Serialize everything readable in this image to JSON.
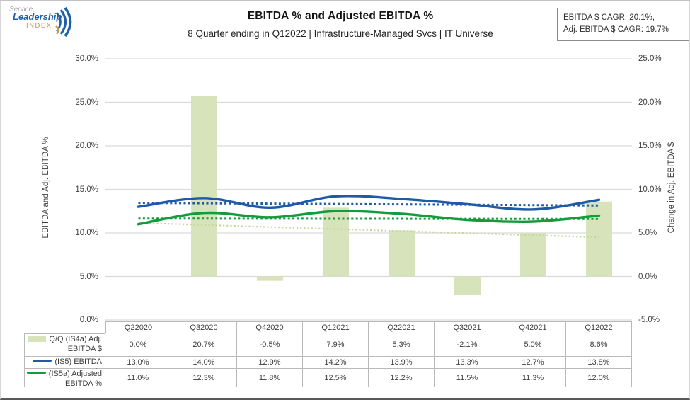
{
  "logo": {
    "line1": "Service,",
    "line2": "Leadership",
    "line3": "INDEX"
  },
  "header": {
    "title": "EBITDA % and Adjusted EBITDA %",
    "subtitle": "8 Quarter ending in Q12022 | Infrastructure-Managed Svcs | IT Universe",
    "cagr_box": {
      "line1": "EBITDA $ CAGR: 20.1%,",
      "line2": "Adj. EBITDA $ CAGR: 19.7%"
    }
  },
  "chart_data": {
    "type": "combo",
    "categories": [
      "Q22020",
      "Q32020",
      "Q42020",
      "Q12021",
      "Q22021",
      "Q32021",
      "Q42021",
      "Q12022"
    ],
    "series": [
      {
        "name": "Q/Q (IS4a) Adj. EBITDA $",
        "type": "bar",
        "axis": "right",
        "color": "#d7e3bb",
        "values": [
          0.0,
          20.7,
          -0.5,
          7.9,
          5.3,
          -2.1,
          5.0,
          8.6
        ]
      },
      {
        "name": "(IS5) EBITDA %",
        "type": "line",
        "axis": "left",
        "color": "#1e5aa5",
        "values": [
          13.0,
          14.0,
          12.9,
          14.2,
          13.9,
          13.3,
          12.7,
          13.8
        ]
      },
      {
        "name": "(IS5a) Adjusted EBITDA %",
        "type": "line",
        "axis": "left",
        "color": "#149b3c",
        "values": [
          11.0,
          12.3,
          11.8,
          12.5,
          12.2,
          11.5,
          11.3,
          12.0
        ]
      }
    ],
    "trendlines": [
      {
        "for": "(IS5) EBITDA %",
        "axis": "left",
        "color": "#1e5aa5",
        "start": 13.45,
        "end": 13.15,
        "width": 3
      },
      {
        "for": "(IS5a) Adjusted EBITDA %",
        "axis": "left",
        "color": "#149b3c",
        "start": 11.65,
        "end": 11.6,
        "width": 3
      },
      {
        "for": "Q/Q (IS4a) Adj. EBITDA $",
        "axis": "right",
        "color": "#c5d69b",
        "start": 6.15,
        "end": 4.5,
        "width": 2.2
      }
    ],
    "left_axis": {
      "title": "EBITDA and Adj. EBITDA %",
      "min": 0,
      "max": 30,
      "ticks": [
        "30.0%",
        "25.0%",
        "20.0%",
        "15.0%",
        "10.0%",
        "5.0%",
        "0.0%"
      ]
    },
    "right_axis": {
      "title": "Change in Adj. EBITDA $",
      "min": -5,
      "max": 25,
      "ticks": [
        "25.0%",
        "20.0%",
        "15.0%",
        "10.0%",
        "5.0%",
        "0.0%",
        "-5.0%"
      ]
    },
    "grid": true,
    "legend_position": "table-left"
  },
  "table": {
    "columns": [
      "Q22020",
      "Q32020",
      "Q42020",
      "Q12021",
      "Q22021",
      "Q32021",
      "Q42021",
      "Q12022"
    ],
    "rows": [
      {
        "label": "Q/Q (IS4a) Adj. EBITDA $",
        "swatch": "bar",
        "values": [
          "0.0%",
          "20.7%",
          "-0.5%",
          "7.9%",
          "5.3%",
          "-2.1%",
          "5.0%",
          "8.6%"
        ]
      },
      {
        "label": "(IS5) EBITDA %",
        "swatch": "line",
        "values": [
          "13.0%",
          "14.0%",
          "12.9%",
          "14.2%",
          "13.9%",
          "13.3%",
          "12.7%",
          "13.8%"
        ]
      },
      {
        "label": "(IS5a) Adjusted EBITDA %",
        "swatch": "line",
        "values": [
          "11.0%",
          "12.3%",
          "11.8%",
          "12.5%",
          "12.2%",
          "11.5%",
          "11.3%",
          "12.0%"
        ]
      }
    ]
  }
}
